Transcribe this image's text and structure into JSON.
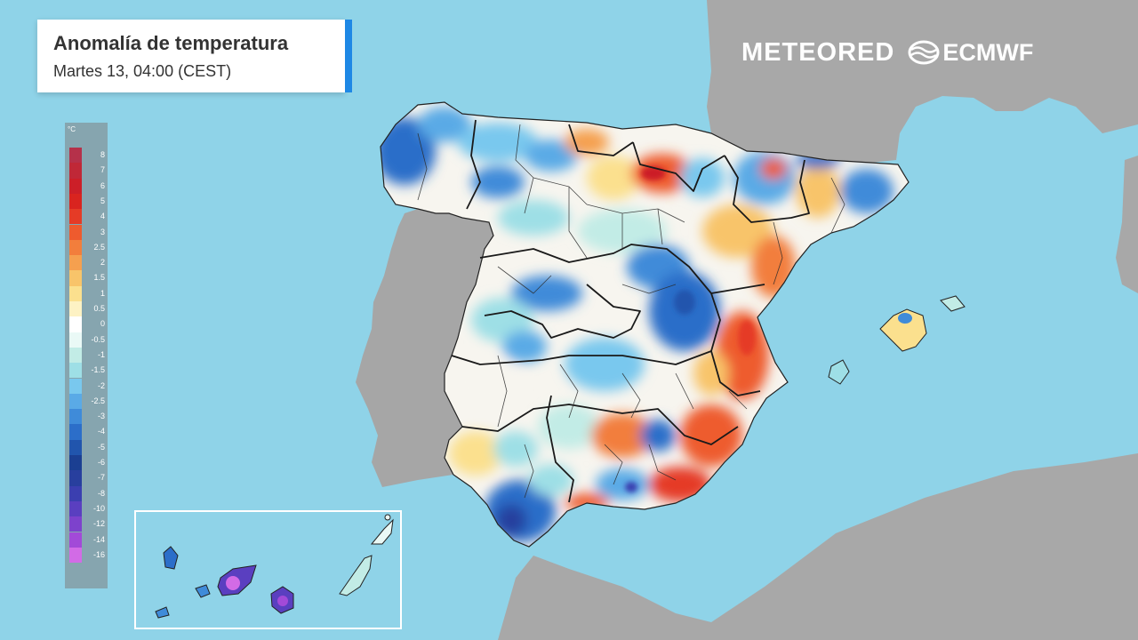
{
  "title": {
    "main": "Anomalía de temperatura",
    "subtitle": "Martes 13, 04:00 (CEST)"
  },
  "brand": {
    "meteored": "METEORED",
    "ecmwf": "ECMWF"
  },
  "legend": {
    "unit": "°C",
    "stops": [
      {
        "label": "8",
        "color": "#b5314a"
      },
      {
        "label": "7",
        "color": "#c02837"
      },
      {
        "label": "6",
        "color": "#cc1f28"
      },
      {
        "label": "5",
        "color": "#d9241f"
      },
      {
        "label": "4",
        "color": "#e53b26"
      },
      {
        "label": "3",
        "color": "#ee5b2e"
      },
      {
        "label": "2.5",
        "color": "#f27e3c"
      },
      {
        "label": "2",
        "color": "#f5a04f"
      },
      {
        "label": "1.5",
        "color": "#f8c46a"
      },
      {
        "label": "1",
        "color": "#fbe08e"
      },
      {
        "label": "0.5",
        "color": "#fdf2c4"
      },
      {
        "label": "0",
        "color": "#ffffff"
      },
      {
        "label": "-0.5",
        "color": "#eaf9f6"
      },
      {
        "label": "-1",
        "color": "#c2ece6"
      },
      {
        "label": "-1.5",
        "color": "#9edfe6"
      },
      {
        "label": "-2",
        "color": "#79c8ee"
      },
      {
        "label": "-2.5",
        "color": "#5aaae6"
      },
      {
        "label": "-3",
        "color": "#3f8bd9"
      },
      {
        "label": "-4",
        "color": "#2c6ec9"
      },
      {
        "label": "-5",
        "color": "#2155ad"
      },
      {
        "label": "-6",
        "color": "#1b3f92"
      },
      {
        "label": "-7",
        "color": "#283f9e"
      },
      {
        "label": "-8",
        "color": "#3b3fb0"
      },
      {
        "label": "-10",
        "color": "#5a3fc0"
      },
      {
        "label": "-12",
        "color": "#7d42cc"
      },
      {
        "label": "-14",
        "color": "#a24ad8"
      },
      {
        "label": "-16",
        "color": "#d26be6"
      }
    ]
  },
  "colors": {
    "sea": "#8fd3e8",
    "land": "#a6a6a6",
    "neutral": "#f7f5ef",
    "accent": "#1e88e5"
  }
}
